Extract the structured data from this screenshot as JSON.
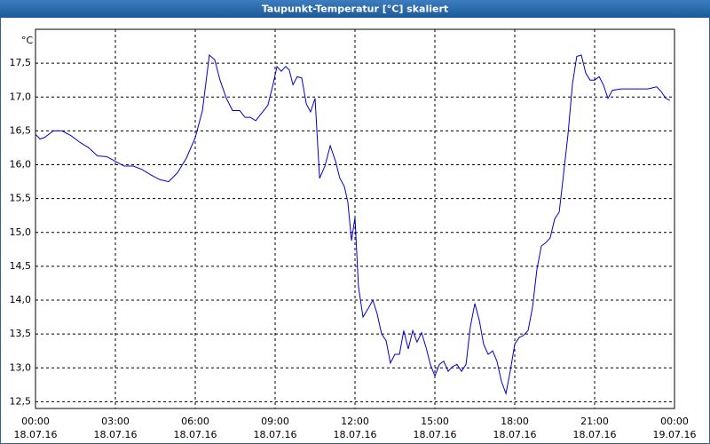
{
  "chart_data": {
    "type": "line",
    "title": "Taupunkt-Temperatur [°C] skaliert",
    "y_unit": "°C",
    "x": [
      0,
      0.17,
      0.33,
      0.67,
      1,
      1.33,
      1.67,
      2,
      2.33,
      2.67,
      3,
      3.33,
      3.67,
      4,
      4.33,
      4.67,
      5,
      5.33,
      5.67,
      6,
      6.27,
      6.53,
      6.73,
      6.93,
      7.17,
      7.4,
      7.67,
      7.87,
      8.07,
      8.27,
      8.53,
      8.73,
      8.93,
      9.07,
      9.23,
      9.4,
      9.53,
      9.67,
      9.83,
      10,
      10.17,
      10.33,
      10.5,
      10.67,
      10.87,
      11.07,
      11.27,
      11.43,
      11.6,
      11.73,
      11.87,
      12,
      12.13,
      12.3,
      12.5,
      12.67,
      12.83,
      13,
      13.17,
      13.33,
      13.5,
      13.67,
      13.83,
      14,
      14.17,
      14.33,
      14.5,
      14.67,
      14.83,
      15,
      15.17,
      15.33,
      15.5,
      15.67,
      15.83,
      16,
      16.17,
      16.33,
      16.5,
      16.67,
      16.83,
      17,
      17.17,
      17.33,
      17.5,
      17.67,
      17.83,
      18,
      18.17,
      18.33,
      18.5,
      18.67,
      18.83,
      19,
      19.17,
      19.33,
      19.5,
      19.67,
      19.83,
      20,
      20.17,
      20.33,
      20.5,
      20.67,
      20.83,
      21,
      21.17,
      21.33,
      21.5,
      21.67,
      22,
      22.67,
      23,
      23.33,
      23.5,
      23.67,
      23.83
    ],
    "series": [
      {
        "name": "Taupunkt",
        "color": "#0000cc",
        "values": [
          16.45,
          16.38,
          16.4,
          16.5,
          16.5,
          16.43,
          16.33,
          16.25,
          16.13,
          16.12,
          16.05,
          15.98,
          15.98,
          15.93,
          15.85,
          15.78,
          15.75,
          15.88,
          16.1,
          16.4,
          16.8,
          17.62,
          17.55,
          17.25,
          16.98,
          16.8,
          16.8,
          16.7,
          16.7,
          16.65,
          16.78,
          16.88,
          17.2,
          17.45,
          17.38,
          17.45,
          17.4,
          17.18,
          17.3,
          17.28,
          16.9,
          16.78,
          16.98,
          15.8,
          15.98,
          16.28,
          16.05,
          15.8,
          15.68,
          15.45,
          14.88,
          15.22,
          14.2,
          13.75,
          13.88,
          14.0,
          13.8,
          13.5,
          13.4,
          13.07,
          13.2,
          13.2,
          13.55,
          13.28,
          13.55,
          13.38,
          13.52,
          13.3,
          13.05,
          12.88,
          13.05,
          13.1,
          12.95,
          13.02,
          13.05,
          12.95,
          13.05,
          13.6,
          13.95,
          13.7,
          13.35,
          13.2,
          13.25,
          13.1,
          12.8,
          12.62,
          12.95,
          13.35,
          13.45,
          13.48,
          13.55,
          13.9,
          14.45,
          14.8,
          14.85,
          14.92,
          15.2,
          15.3,
          15.85,
          16.45,
          17.2,
          17.6,
          17.62,
          17.35,
          17.25,
          17.25,
          17.3,
          17.18,
          16.98,
          17.1,
          17.12,
          17.12,
          17.12,
          17.15,
          17.08,
          16.98,
          16.95
        ]
      }
    ],
    "xlim": [
      0,
      24
    ],
    "xticks": [
      {
        "value": 0,
        "label": [
          "00:00",
          "18.07.16"
        ]
      },
      {
        "value": 3,
        "label": [
          "03:00",
          "18.07.16"
        ]
      },
      {
        "value": 6,
        "label": [
          "06:00",
          "18.07.16"
        ]
      },
      {
        "value": 9,
        "label": [
          "09:00",
          "18.07.16"
        ]
      },
      {
        "value": 12,
        "label": [
          "12:00",
          "18.07.16"
        ]
      },
      {
        "value": 15,
        "label": [
          "15:00",
          "18.07.16"
        ]
      },
      {
        "value": 18,
        "label": [
          "18:00",
          "18.07.16"
        ]
      },
      {
        "value": 21,
        "label": [
          "21:00",
          "18.07.16"
        ]
      },
      {
        "value": 24,
        "label": [
          "00:00",
          "19.07.16"
        ]
      }
    ],
    "ylim": [
      12.4,
      18.0
    ],
    "yticks": [
      {
        "value": 12.5,
        "label": "12,5"
      },
      {
        "value": 13,
        "label": "13,0"
      },
      {
        "value": 13.5,
        "label": "13,5"
      },
      {
        "value": 14,
        "label": "14,0"
      },
      {
        "value": 14.5,
        "label": "14,5"
      },
      {
        "value": 15,
        "label": "15,0"
      },
      {
        "value": 15.5,
        "label": "15,5"
      },
      {
        "value": 16,
        "label": "16,0"
      },
      {
        "value": 16.5,
        "label": "16,5"
      },
      {
        "value": 17,
        "label": "17,0"
      },
      {
        "value": 17.5,
        "label": "17,5"
      }
    ],
    "grid": true
  }
}
